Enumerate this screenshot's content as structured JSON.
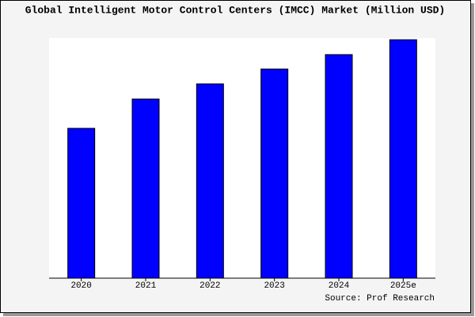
{
  "chart_data": {
    "type": "bar",
    "title": "Global Intelligent Motor Control Centers (IMCC) Market (Million USD)",
    "categories": [
      "2020",
      "2021",
      "2022",
      "2023",
      "2024",
      "2025e"
    ],
    "values": [
      62.4,
      74.6,
      80.9,
      87.1,
      93.1,
      99.3
    ],
    "color": "#0000ff",
    "ylim": [
      0,
      100
    ],
    "source": "Source: Prof Research"
  }
}
